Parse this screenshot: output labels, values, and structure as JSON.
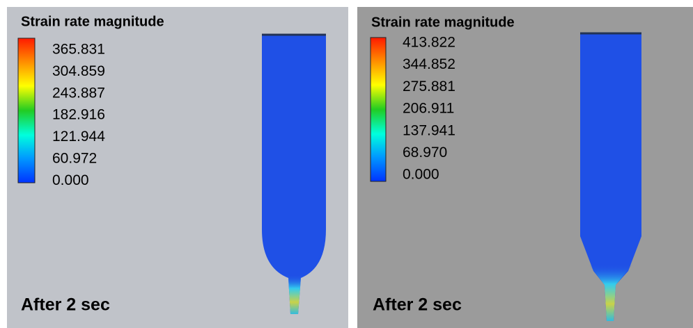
{
  "panels": [
    {
      "title": "Strain rate magnitude",
      "legend_labels": [
        "365.831",
        "304.859",
        "243.887",
        "182.916",
        "121.944",
        "60.972",
        "0.000"
      ],
      "caption": "After 2 sec"
    },
    {
      "title": "Strain rate magnitude",
      "legend_labels": [
        "413.822",
        "344.852",
        "275.881",
        "206.911",
        "137.941",
        "68.970",
        "0.000"
      ],
      "caption": "After 2 sec"
    }
  ]
}
